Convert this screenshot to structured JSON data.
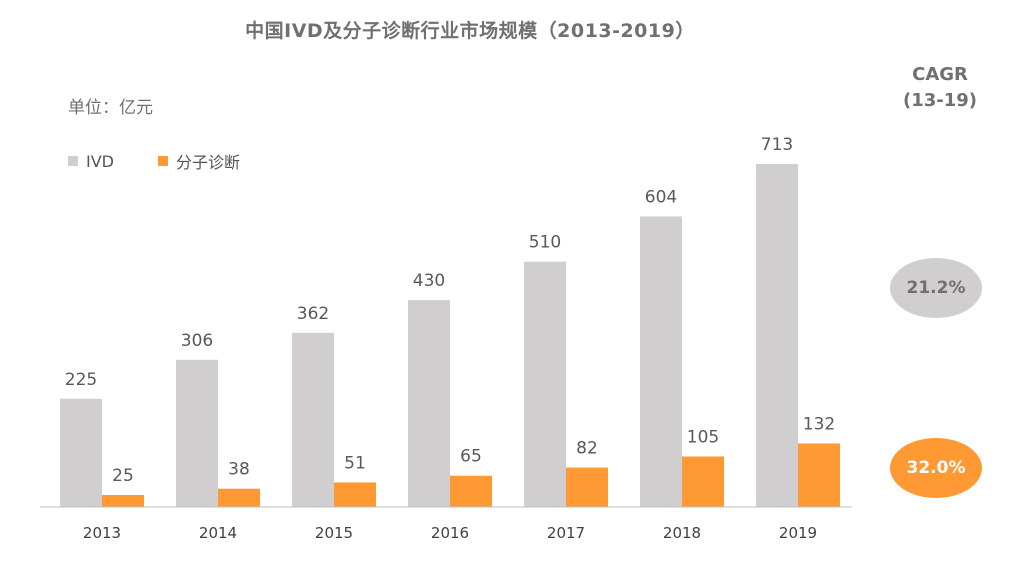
{
  "chart_data": {
    "type": "bar",
    "title": "中国IVD及分子诊断行业市场规模（2013-2019）",
    "unit_label": "单位：亿元",
    "categories": [
      "2013",
      "2014",
      "2015",
      "2016",
      "2017",
      "2018",
      "2019"
    ],
    "series": [
      {
        "name": "IVD",
        "color": "#d0cece",
        "values": [
          225,
          306,
          362,
          430,
          510,
          604,
          713
        ]
      },
      {
        "name": "分子诊断",
        "color": "#ff9933",
        "values": [
          25,
          38,
          51,
          65,
          82,
          105,
          132
        ]
      }
    ],
    "ylim": [
      0,
      713
    ],
    "grid": false,
    "legend_position": "top-left",
    "data_labels": true
  },
  "cagr": {
    "title_line1": "CAGR",
    "title_line2": "(13-19)",
    "ivd": {
      "value": "21.2%",
      "color": "#d0cece",
      "text_color": "#707070"
    },
    "molecular": {
      "value": "32.0%",
      "color": "#ff9933",
      "text_color": "#ffffff"
    }
  }
}
